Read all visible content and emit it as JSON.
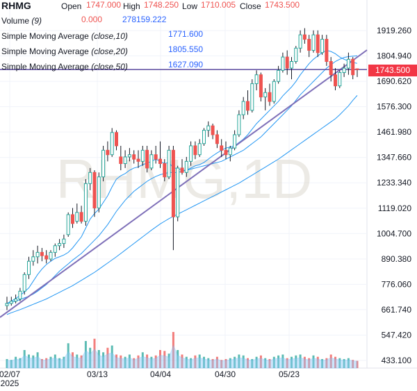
{
  "header": {
    "ticker": "RHMG",
    "open_label": "Open",
    "open": "1747.000",
    "high_label": "High",
    "high": "1748.250",
    "low_label": "Low",
    "low": "1710.005",
    "close_label": "Close",
    "close": "1743.500",
    "volume_label": "Volume",
    "volume_param": "(9)",
    "volume_value_1": "0.000",
    "volume_value_2": "278159.222",
    "indicators": [
      {
        "name": "Simple Moving Average",
        "param": "(close,10)",
        "value": "1771.600"
      },
      {
        "name": "Simple Moving Average",
        "param": "(close,20)",
        "value": "1805.550"
      },
      {
        "name": "Simple Moving Average",
        "param": "(close,50)",
        "value": "1627.090"
      }
    ]
  },
  "watermark": "RHMG,1D",
  "last_price_badge": "1743.500",
  "chart_data": {
    "type": "candlestick",
    "ticker": "RHMG",
    "interval": "1D",
    "y_ticks": [
      "1919.260",
      "1804.940",
      "1690.620",
      "1576.300",
      "1461.980",
      "1347.660",
      "1233.340",
      "1119.020",
      "1004.700",
      "890.380",
      "776.060",
      "661.740",
      "547.420",
      "433.100"
    ],
    "x_ticks": [
      "02/07",
      "03/13",
      "04/04",
      "04/30",
      "05/23"
    ],
    "x_tick_sub": "2025",
    "ylim": [
      433.1,
      1919.26
    ],
    "colors": {
      "up": "#26a69a",
      "down": "#ef5350",
      "sma": "#2196f3",
      "trend": "#7e6fb8",
      "hline": "#5b4a9e",
      "volume_area": "#90caf9"
    },
    "horizontal_line": 1743.5,
    "trend_line": {
      "start": [
        "02/07",
        690
      ],
      "end": [
        "06/03",
        1800
      ]
    },
    "ohlc": [
      [
        680,
        720,
        660,
        690
      ],
      [
        690,
        720,
        680,
        700
      ],
      [
        700,
        730,
        690,
        710
      ],
      [
        710,
        760,
        700,
        745
      ],
      [
        745,
        830,
        730,
        820
      ],
      [
        820,
        900,
        800,
        880
      ],
      [
        880,
        930,
        860,
        900
      ],
      [
        900,
        950,
        870,
        920
      ],
      [
        920,
        940,
        880,
        905
      ],
      [
        905,
        930,
        870,
        890
      ],
      [
        890,
        930,
        880,
        920
      ],
      [
        920,
        960,
        900,
        950
      ],
      [
        950,
        980,
        930,
        960
      ],
      [
        960,
        1000,
        940,
        980
      ],
      [
        1000,
        1100,
        990,
        1090
      ],
      [
        1090,
        1120,
        1030,
        1050
      ],
      [
        1060,
        1140,
        1050,
        1100
      ],
      [
        1100,
        1130,
        1050,
        1060
      ],
      [
        1060,
        1250,
        1040,
        1230
      ],
      [
        1230,
        1300,
        1200,
        1280
      ],
      [
        1280,
        1290,
        1080,
        1120
      ],
      [
        1120,
        1280,
        1100,
        1260
      ],
      [
        1260,
        1400,
        1240,
        1380
      ],
      [
        1380,
        1420,
        1330,
        1360
      ],
      [
        1360,
        1480,
        1350,
        1460
      ],
      [
        1460,
        1470,
        1380,
        1400
      ],
      [
        1350,
        1400,
        1290,
        1320
      ],
      [
        1320,
        1380,
        1300,
        1350
      ],
      [
        1350,
        1390,
        1330,
        1360
      ],
      [
        1360,
        1380,
        1320,
        1340
      ],
      [
        1340,
        1380,
        1300,
        1330
      ],
      [
        1330,
        1400,
        1310,
        1380
      ],
      [
        1380,
        1400,
        1280,
        1300
      ],
      [
        1300,
        1380,
        1290,
        1360
      ],
      [
        1360,
        1400,
        1320,
        1340
      ],
      [
        1340,
        1420,
        1300,
        1320
      ],
      [
        1320,
        1340,
        1240,
        1260
      ],
      [
        1260,
        1400,
        1250,
        1380
      ],
      [
        1380,
        1400,
        930,
        1080
      ],
      [
        1080,
        1310,
        1060,
        1300
      ],
      [
        1300,
        1340,
        1270,
        1280
      ],
      [
        1280,
        1350,
        1260,
        1330
      ],
      [
        1330,
        1420,
        1310,
        1400
      ],
      [
        1400,
        1420,
        1340,
        1360
      ],
      [
        1360,
        1430,
        1350,
        1410
      ],
      [
        1410,
        1480,
        1400,
        1470
      ],
      [
        1470,
        1510,
        1440,
        1490
      ],
      [
        1490,
        1500,
        1430,
        1450
      ],
      [
        1450,
        1470,
        1390,
        1410
      ],
      [
        1400,
        1430,
        1350,
        1380
      ],
      [
        1380,
        1420,
        1340,
        1360
      ],
      [
        1360,
        1400,
        1330,
        1390
      ],
      [
        1390,
        1470,
        1380,
        1450
      ],
      [
        1450,
        1560,
        1440,
        1540
      ],
      [
        1540,
        1620,
        1520,
        1600
      ],
      [
        1600,
        1650,
        1540,
        1560
      ],
      [
        1560,
        1700,
        1550,
        1680
      ],
      [
        1680,
        1740,
        1650,
        1720
      ],
      [
        1720,
        1730,
        1600,
        1620
      ],
      [
        1620,
        1660,
        1560,
        1640
      ],
      [
        1640,
        1680,
        1580,
        1600
      ],
      [
        1600,
        1700,
        1590,
        1690
      ],
      [
        1690,
        1760,
        1680,
        1740
      ],
      [
        1740,
        1820,
        1730,
        1800
      ],
      [
        1800,
        1830,
        1720,
        1750
      ],
      [
        1750,
        1800,
        1700,
        1780
      ],
      [
        1780,
        1850,
        1770,
        1840
      ],
      [
        1840,
        1920,
        1820,
        1900
      ],
      [
        1900,
        1930,
        1860,
        1880
      ],
      [
        1880,
        1900,
        1800,
        1830
      ],
      [
        1830,
        1920,
        1820,
        1900
      ],
      [
        1900,
        1920,
        1800,
        1820
      ],
      [
        1820,
        1900,
        1810,
        1880
      ],
      [
        1880,
        1900,
        1760,
        1780
      ],
      [
        1780,
        1800,
        1690,
        1720
      ],
      [
        1720,
        1750,
        1650,
        1670
      ],
      [
        1670,
        1740,
        1660,
        1730
      ],
      [
        1730,
        1770,
        1710,
        1750
      ],
      [
        1750,
        1820,
        1720,
        1790
      ],
      [
        1790,
        1800,
        1700,
        1720
      ],
      [
        1747,
        1748.25,
        1710.005,
        1743.5
      ]
    ],
    "sma10": [
      690,
      700,
      712,
      726,
      742,
      760,
      790,
      820,
      845,
      865,
      880,
      893,
      900,
      908,
      920,
      940,
      965,
      990,
      1030,
      1070,
      1095,
      1115,
      1145,
      1175,
      1215,
      1250,
      1265,
      1275,
      1290,
      1300,
      1305,
      1315,
      1322,
      1330,
      1340,
      1330,
      1320,
      1325,
      1300,
      1298,
      1290,
      1290,
      1300,
      1310,
      1315,
      1325,
      1340,
      1355,
      1368,
      1380,
      1390,
      1395,
      1400,
      1415,
      1430,
      1450,
      1475,
      1500,
      1520,
      1540,
      1560,
      1580,
      1600,
      1625,
      1645,
      1665,
      1690,
      1720,
      1745,
      1770,
      1790,
      1805,
      1820,
      1830,
      1825,
      1815,
      1800,
      1790,
      1782,
      1775,
      1771.6
    ],
    "sma20": [
      690,
      695,
      700,
      707,
      715,
      722,
      732,
      745,
      760,
      775,
      795,
      815,
      835,
      852,
      868,
      885,
      900,
      915,
      935,
      955,
      975,
      995,
      1020,
      1045,
      1075,
      1105,
      1130,
      1155,
      1175,
      1195,
      1210,
      1225,
      1240,
      1252,
      1262,
      1270,
      1275,
      1280,
      1280,
      1280,
      1285,
      1290,
      1295,
      1300,
      1305,
      1310,
      1315,
      1320,
      1325,
      1330,
      1340,
      1350,
      1360,
      1370,
      1380,
      1395,
      1410,
      1425,
      1440,
      1460,
      1480,
      1500,
      1520,
      1540,
      1560,
      1580,
      1605,
      1630,
      1650,
      1670,
      1690,
      1710,
      1730,
      1750,
      1765,
      1780,
      1790,
      1798,
      1802,
      1804,
      1805.55
    ],
    "sma50": [
      640,
      648,
      655,
      662,
      670,
      678,
      686,
      694,
      702,
      710,
      720,
      730,
      740,
      750,
      760,
      770,
      782,
      794,
      806,
      818,
      830,
      844,
      858,
      872,
      886,
      900,
      915,
      930,
      945,
      960,
      975,
      990,
      1005,
      1020,
      1034,
      1048,
      1060,
      1072,
      1082,
      1092,
      1102,
      1112,
      1122,
      1132,
      1142,
      1152,
      1162,
      1172,
      1182,
      1192,
      1202,
      1212,
      1222,
      1232,
      1244,
      1256,
      1268,
      1280,
      1292,
      1304,
      1316,
      1328,
      1340,
      1354,
      1368,
      1382,
      1396,
      1410,
      1424,
      1438,
      1452,
      1466,
      1480,
      1494,
      1508,
      1522,
      1540,
      1560,
      1580,
      1605,
      1627.09
    ],
    "volume": [
      20,
      18,
      25,
      22,
      40,
      30,
      28,
      35,
      20,
      22,
      25,
      30,
      22,
      25,
      55,
      35,
      30,
      28,
      60,
      45,
      65,
      40,
      35,
      45,
      50,
      30,
      28,
      25,
      30,
      22,
      28,
      35,
      30,
      25,
      28,
      40,
      38,
      32,
      80,
      40,
      30,
      25,
      22,
      28,
      30,
      25,
      22,
      20,
      25,
      18,
      20,
      22,
      25,
      30,
      28,
      22,
      20,
      25,
      28,
      22,
      20,
      25,
      28,
      30,
      22,
      25,
      28,
      30,
      25,
      22,
      28,
      25,
      20,
      22,
      30,
      25,
      22,
      20,
      22,
      18,
      16
    ]
  }
}
